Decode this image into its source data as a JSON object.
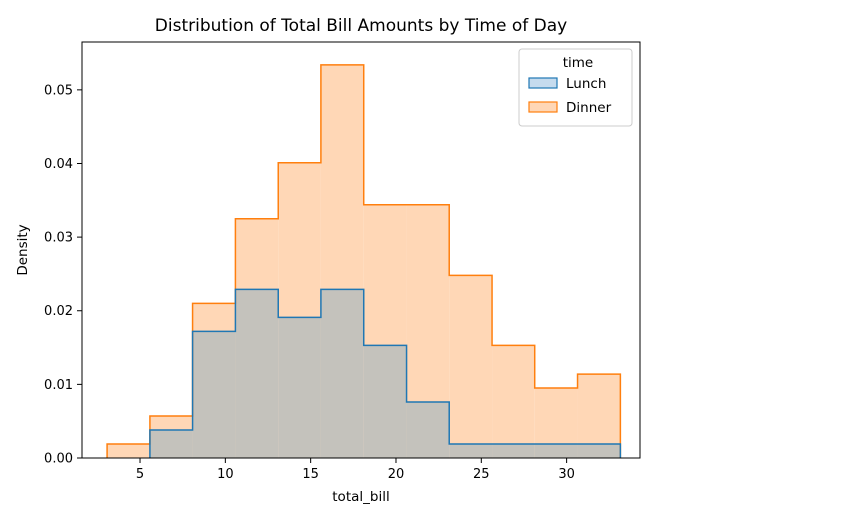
{
  "chart_data": {
    "type": "histogram-step",
    "title": "Distribution of Total Bill Amounts by Time of Day",
    "xlabel": "total_bill",
    "ylabel": "Density",
    "xlim": [
      1.6,
      34.3
    ],
    "ylim": [
      0,
      0.0565
    ],
    "xticks": [
      5,
      10,
      15,
      20,
      25,
      30
    ],
    "xtick_labels": [
      "5",
      "10",
      "15",
      "20",
      "25",
      "30"
    ],
    "yticks": [
      0,
      0.01,
      0.02,
      0.03,
      0.04,
      0.05
    ],
    "ytick_labels": [
      "0.00",
      "0.01",
      "0.02",
      "0.03",
      "0.04",
      "0.05"
    ],
    "bin_edges": [
      3.07,
      5.58,
      8.08,
      10.59,
      13.1,
      15.6,
      18.11,
      20.62,
      23.12,
      25.63,
      28.13,
      30.64,
      33.15
    ],
    "grid": false,
    "legend": {
      "title": "time",
      "placement": "top-right"
    },
    "series": [
      {
        "name": "Lunch",
        "color": "#1f77b4",
        "fill": "#c4c2bc",
        "values": [
          0,
          0.0038,
          0.0172,
          0.0229,
          0.0191,
          0.0229,
          0.0153,
          0.0076,
          0.0019,
          0.0019,
          0.0019,
          0.0019
        ]
      },
      {
        "name": "Dinner",
        "color": "#ff7f0e",
        "fill": "#ffd7b6",
        "values": [
          0.0019,
          0.0057,
          0.021,
          0.0325,
          0.0401,
          0.0534,
          0.0344,
          0.0344,
          0.0248,
          0.0153,
          0.0095,
          0.0114
        ]
      }
    ]
  }
}
